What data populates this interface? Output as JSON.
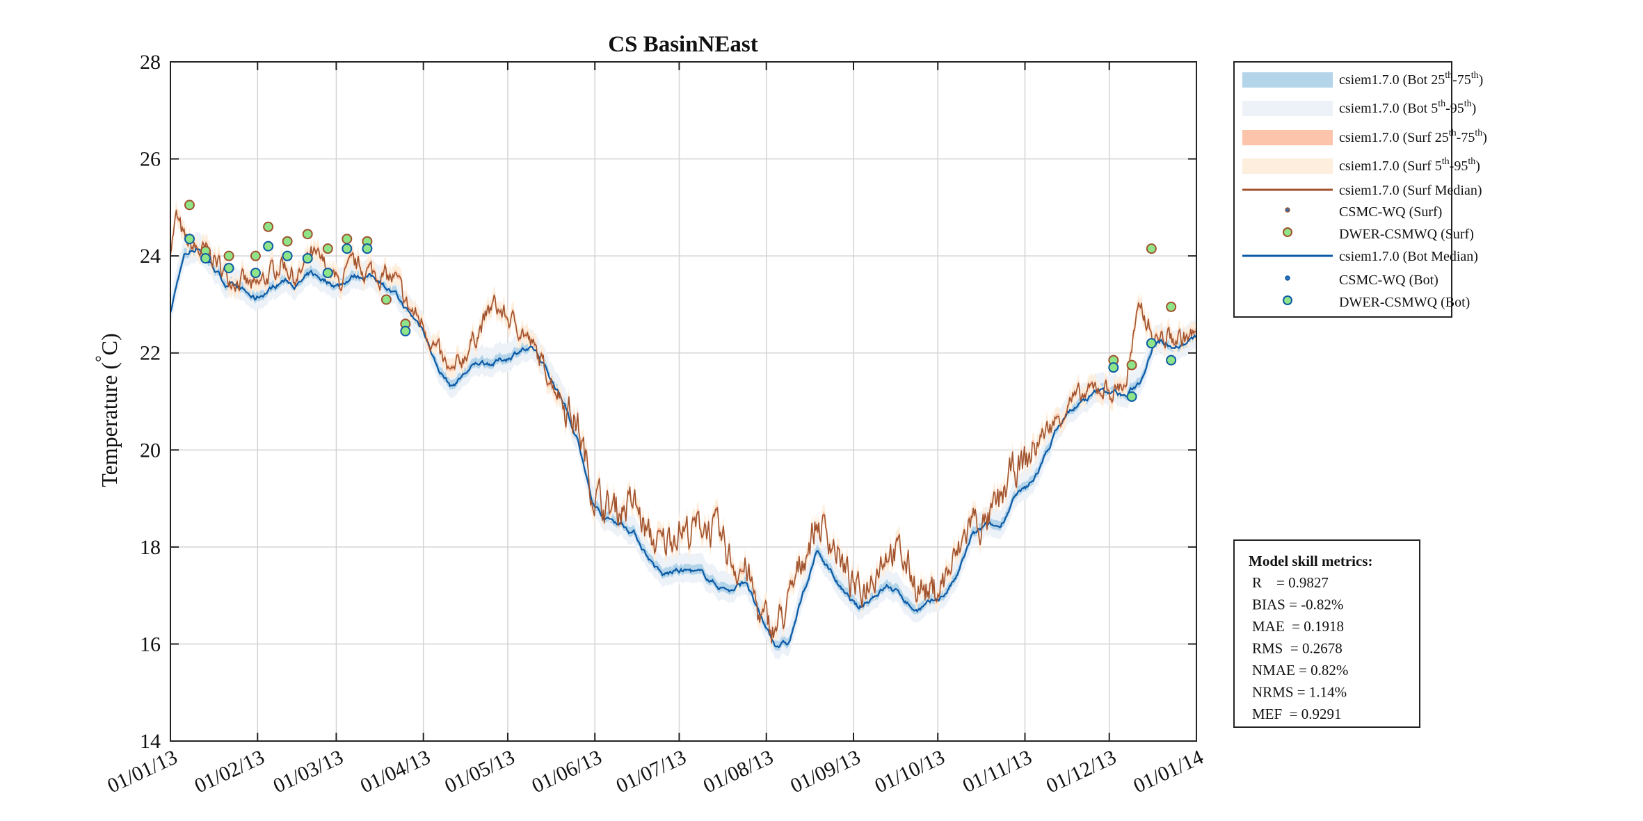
{
  "chart_data": {
    "type": "line",
    "title": "CS BasinNEast",
    "xlabel": "",
    "ylabel": "Temperature (°C)",
    "ylabel_parts": {
      "main": "Temperature (",
      "deg": "°",
      "unit": "C)"
    },
    "ylim": [
      14,
      28
    ],
    "yticks": [
      "14",
      "16",
      "18",
      "20",
      "22",
      "24",
      "26",
      "28"
    ],
    "xlim_days": [
      0,
      365
    ],
    "xticks": [
      {
        "day": 0,
        "label": "01/01/13"
      },
      {
        "day": 31,
        "label": "01/02/13"
      },
      {
        "day": 59,
        "label": "01/03/13"
      },
      {
        "day": 90,
        "label": "01/04/13"
      },
      {
        "day": 120,
        "label": "01/05/13"
      },
      {
        "day": 151,
        "label": "01/06/13"
      },
      {
        "day": 181,
        "label": "01/07/13"
      },
      {
        "day": 212,
        "label": "01/08/13"
      },
      {
        "day": 243,
        "label": "01/09/13"
      },
      {
        "day": 273,
        "label": "01/10/13"
      },
      {
        "day": 304,
        "label": "01/11/13"
      },
      {
        "day": 334,
        "label": "01/12/13"
      },
      {
        "day": 365,
        "label": "01/01/14"
      }
    ],
    "grid": true,
    "series": [
      {
        "name": "csiem1.7.0 (Surf Median)",
        "color": "#a0522d",
        "x": [
          0,
          2,
          5,
          10,
          15,
          20,
          25,
          30,
          35,
          40,
          45,
          50,
          55,
          60,
          65,
          70,
          75,
          80,
          85,
          90,
          95,
          100,
          105,
          110,
          115,
          120,
          125,
          130,
          135,
          140,
          145,
          150,
          155,
          160,
          165,
          170,
          175,
          180,
          185,
          190,
          195,
          200,
          205,
          210,
          215,
          220,
          225,
          230,
          235,
          240,
          245,
          250,
          255,
          260,
          265,
          270,
          275,
          280,
          285,
          290,
          295,
          300,
          305,
          310,
          315,
          320,
          325,
          330,
          335,
          340,
          345,
          350,
          355,
          360,
          365
        ],
        "y": [
          24.2,
          24.8,
          24.3,
          24.1,
          24.0,
          23.6,
          23.5,
          23.3,
          23.6,
          23.9,
          23.5,
          24.0,
          23.8,
          23.4,
          23.8,
          23.7,
          23.6,
          23.5,
          22.9,
          22.6,
          22.0,
          21.5,
          22.0,
          22.5,
          23.0,
          22.7,
          22.5,
          22.0,
          21.5,
          21.0,
          20.5,
          19.2,
          18.8,
          18.8,
          18.9,
          18.2,
          18.0,
          18.4,
          18.3,
          18.5,
          18.2,
          17.7,
          17.5,
          16.5,
          16.3,
          16.8,
          17.8,
          18.5,
          18.2,
          17.5,
          17.0,
          17.5,
          18.0,
          17.8,
          17.3,
          17.0,
          17.3,
          17.8,
          18.6,
          18.4,
          18.9,
          19.6,
          19.8,
          20.3,
          20.6,
          21.0,
          21.1,
          21.3,
          21.2,
          21.4,
          23.0,
          22.3,
          22.3,
          22.3,
          22.4
        ]
      },
      {
        "name": "csiem1.7.0 (Bot Median)",
        "color": "#0b5aa6",
        "x": [
          0,
          3,
          5,
          10,
          15,
          20,
          25,
          30,
          35,
          40,
          45,
          50,
          55,
          60,
          65,
          70,
          75,
          80,
          85,
          90,
          95,
          100,
          105,
          110,
          115,
          120,
          125,
          130,
          135,
          140,
          145,
          150,
          155,
          160,
          165,
          170,
          175,
          180,
          185,
          190,
          195,
          200,
          205,
          210,
          215,
          220,
          225,
          230,
          235,
          240,
          245,
          250,
          255,
          260,
          265,
          270,
          275,
          280,
          285,
          290,
          295,
          300,
          305,
          310,
          315,
          320,
          325,
          330,
          335,
          340,
          345,
          350,
          355,
          360,
          365
        ],
        "y": [
          22.8,
          23.6,
          24.0,
          24.2,
          23.8,
          23.4,
          23.3,
          23.1,
          23.3,
          23.5,
          23.4,
          23.6,
          23.5,
          23.4,
          23.6,
          23.6,
          23.5,
          23.2,
          22.8,
          22.5,
          21.7,
          21.3,
          21.6,
          21.8,
          21.8,
          21.9,
          22.1,
          22.0,
          21.5,
          21.0,
          20.2,
          18.9,
          18.6,
          18.5,
          18.3,
          17.8,
          17.4,
          17.5,
          17.5,
          17.4,
          17.2,
          17.1,
          17.3,
          16.5,
          16.0,
          16.0,
          17.0,
          17.9,
          17.5,
          17.0,
          16.7,
          17.0,
          17.2,
          17.0,
          16.7,
          16.8,
          17.0,
          17.4,
          18.2,
          18.4,
          18.4,
          19.0,
          19.2,
          19.7,
          20.4,
          20.8,
          21.0,
          21.2,
          21.2,
          21.1,
          21.4,
          22.3,
          22.2,
          22.2,
          22.3
        ]
      },
      {
        "name": "DWER-CSMWQ (Surf)",
        "type": "scatter",
        "x": [
          6.8,
          12.5,
          20.8,
          30.3,
          34.8,
          41.6,
          48.8,
          56,
          62.8,
          70,
          76.8,
          83.6,
          335.5,
          342,
          349,
          356
        ],
        "y": [
          25.05,
          24.1,
          24.0,
          24.0,
          24.6,
          24.3,
          24.45,
          24.15,
          24.35,
          24.3,
          23.1,
          22.6,
          21.85,
          21.75,
          24.15,
          22.95
        ]
      },
      {
        "name": "DWER-CSMWQ (Bot)",
        "type": "scatter",
        "x": [
          6.8,
          12.5,
          20.8,
          30.3,
          34.8,
          41.6,
          48.8,
          56,
          62.8,
          70,
          83.6,
          335.5,
          342,
          349,
          356
        ],
        "y": [
          24.35,
          23.95,
          23.75,
          23.65,
          24.2,
          24.0,
          23.95,
          23.65,
          24.15,
          24.15,
          22.45,
          21.7,
          21.1,
          22.2,
          21.85
        ]
      }
    ],
    "legend": {
      "placement": "outside-top-right",
      "items": [
        {
          "label": "csiem1.7.0 (Bot 25",
          "sup1": "th",
          "mid": "-75",
          "sup2": "th",
          "end": ")",
          "kind": "band",
          "color": "#b3d4e9"
        },
        {
          "label": "csiem1.7.0 (Bot 5",
          "sup1": "th",
          "mid": "-95",
          "sup2": "th",
          "end": ")",
          "kind": "band",
          "color": "#edf2f9"
        },
        {
          "label": "csiem1.7.0 (Surf 25",
          "sup1": "th",
          "mid": "-75",
          "sup2": "th",
          "end": ")",
          "kind": "band",
          "color": "#fbc4ab"
        },
        {
          "label": "csiem1.7.0 (Surf 5",
          "sup1": "th",
          "mid": "-95",
          "sup2": "th",
          "end": ")",
          "kind": "band",
          "color": "#fdeedd"
        },
        {
          "label": "csiem1.7.0 (Surf Median)",
          "kind": "line",
          "color": "#a0522d"
        },
        {
          "label": "CSMC-WQ (Surf)",
          "kind": "smalldot",
          "color": "#a0522d",
          "fill": "#2d6fb5"
        },
        {
          "label": "DWER-CSMWQ (Surf)",
          "kind": "dot",
          "color": "#a0522d",
          "fill": "#8fe388"
        },
        {
          "label": "csiem1.7.0 (Bot Median)",
          "kind": "line",
          "color": "#0b5aa6"
        },
        {
          "label": "CSMC-WQ (Bot)",
          "kind": "smalldot",
          "color": "#0b5aa6",
          "fill": "#2d6fb5"
        },
        {
          "label": "DWER-CSMWQ (Bot)",
          "kind": "dot",
          "color": "#0b5aa6",
          "fill": "#8fe388"
        }
      ]
    },
    "annotations": {
      "metrics_title": "Model skill metrics:",
      "metrics": [
        "R    = 0.9827",
        "BIAS = -0.82%",
        "MAE  = 0.1918",
        "RMS  = 0.2678",
        "NMAE = 0.82%",
        "NRMS = 1.14%",
        "MEF  = 0.9291"
      ]
    }
  }
}
